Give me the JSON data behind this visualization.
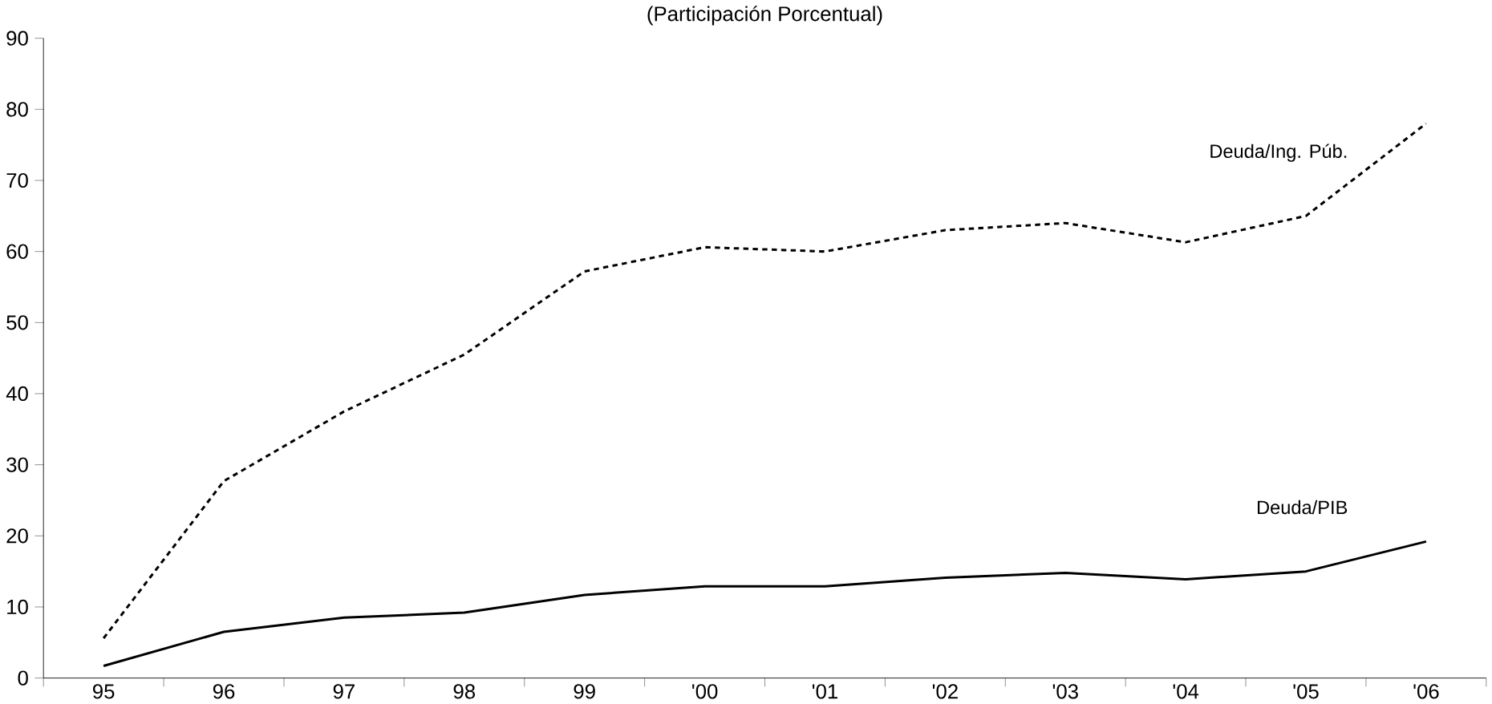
{
  "chart_data": {
    "type": "line",
    "title": "(Participación Porcentual)",
    "categories": [
      "95",
      "96",
      "97",
      "98",
      "99",
      "'00",
      "'01",
      "'02",
      "'03",
      "'04",
      "'05",
      "'06"
    ],
    "series": [
      {
        "name": "Deuda/Ing. Púb.",
        "color": "#000000",
        "line_style": "dashed",
        "values": [
          5.6,
          27.7,
          37.5,
          45.5,
          57.2,
          60.6,
          60,
          63,
          64,
          61.3,
          65,
          78
        ]
      },
      {
        "name": "Deuda/PIB",
        "color": "#000000",
        "line_style": "solid",
        "values": [
          1.7,
          6.5,
          8.5,
          9.2,
          11.7,
          12.9,
          12.9,
          14.1,
          14.8,
          13.9,
          15,
          19.2
        ]
      }
    ],
    "ylim": [
      0,
      90
    ],
    "yticks": [
      0,
      10,
      20,
      30,
      40,
      50,
      60,
      70,
      80,
      90
    ],
    "marker": "none"
  }
}
